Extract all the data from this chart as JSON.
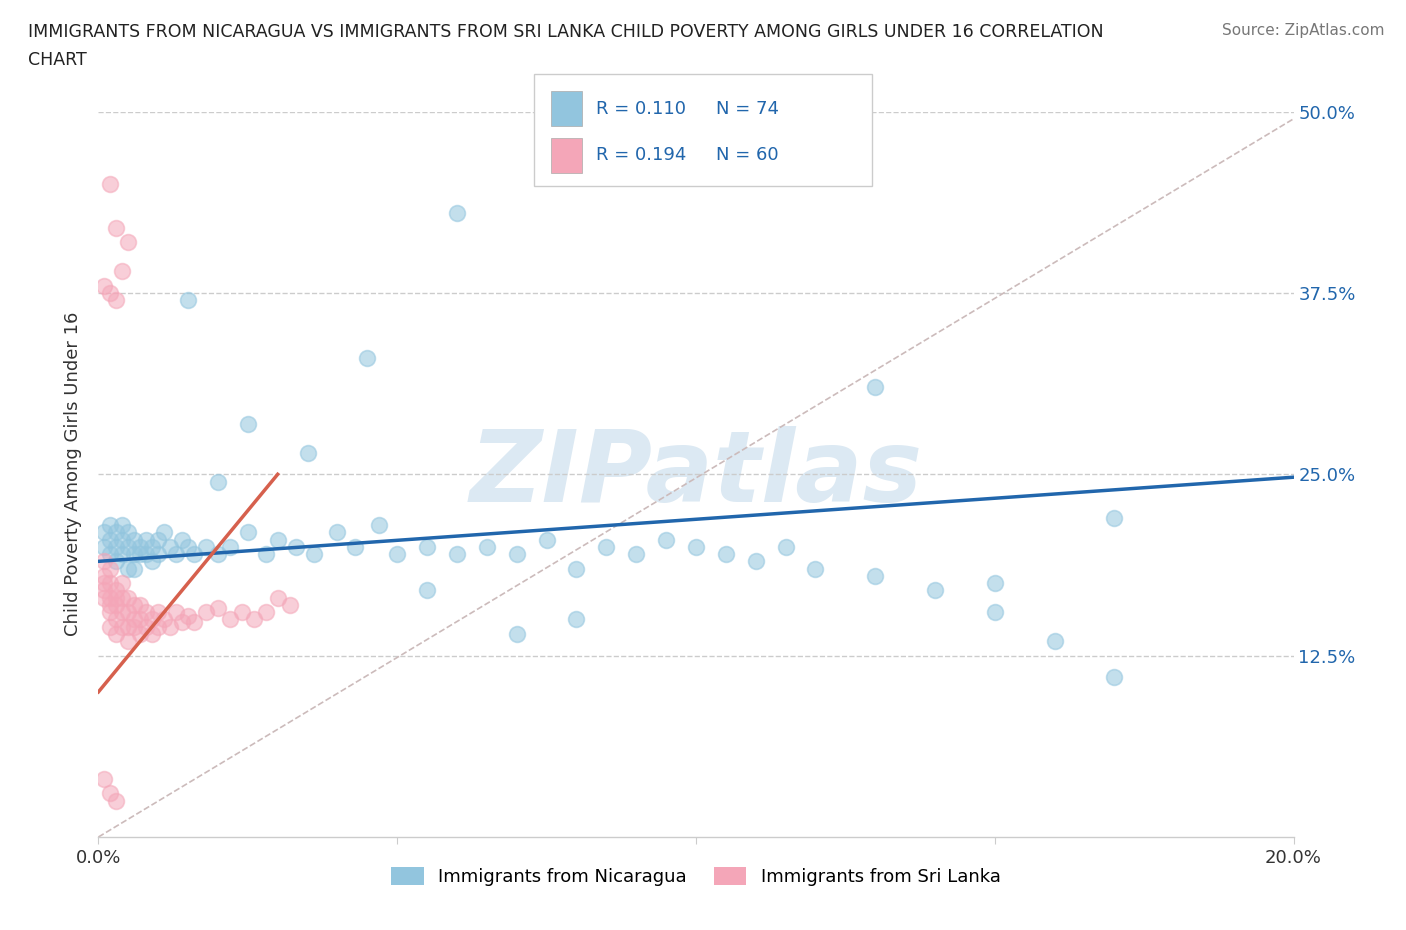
{
  "title_line1": "IMMIGRANTS FROM NICARAGUA VS IMMIGRANTS FROM SRI LANKA CHILD POVERTY AMONG GIRLS UNDER 16 CORRELATION",
  "title_line2": "CHART",
  "source": "Source: ZipAtlas.com",
  "ylabel": "Child Poverty Among Girls Under 16",
  "xlim": [
    0.0,
    0.2
  ],
  "ylim": [
    0.0,
    0.5
  ],
  "yticks": [
    0.0,
    0.125,
    0.25,
    0.375,
    0.5
  ],
  "ytick_labels": [
    "",
    "12.5%",
    "25.0%",
    "37.5%",
    "50.0%"
  ],
  "xticks": [
    0.0,
    0.05,
    0.1,
    0.15,
    0.2
  ],
  "xtick_labels": [
    "0.0%",
    "",
    "",
    "",
    "20.0%"
  ],
  "legend_R1": "R = 0.110",
  "legend_N1": "N = 74",
  "legend_R2": "R = 0.194",
  "legend_N2": "N = 60",
  "label1": "Immigrants from Nicaragua",
  "label2": "Immigrants from Sri Lanka",
  "color1": "#92c5de",
  "color2": "#f4a6b8",
  "trend1_color": "#2166ac",
  "trend2_color": "#d6604d",
  "ref_line_color": "#ccbbbb",
  "watermark": "ZIPatlas",
  "watermark_color": "#dce9f3",
  "background_color": "#ffffff",
  "grid_color": "#cccccc",
  "title_color": "#222222",
  "tick_color": "#2166ac",
  "nicaragua_x": [
    0.001,
    0.001,
    0.002,
    0.002,
    0.002,
    0.003,
    0.003,
    0.003,
    0.004,
    0.004,
    0.004,
    0.005,
    0.005,
    0.005,
    0.006,
    0.006,
    0.006,
    0.007,
    0.007,
    0.008,
    0.008,
    0.009,
    0.009,
    0.01,
    0.01,
    0.011,
    0.012,
    0.013,
    0.014,
    0.015,
    0.016,
    0.018,
    0.02,
    0.022,
    0.025,
    0.028,
    0.03,
    0.033,
    0.036,
    0.04,
    0.043,
    0.047,
    0.05,
    0.055,
    0.06,
    0.065,
    0.07,
    0.075,
    0.08,
    0.085,
    0.09,
    0.095,
    0.1,
    0.105,
    0.11,
    0.115,
    0.12,
    0.13,
    0.14,
    0.15,
    0.16,
    0.17,
    0.025,
    0.035,
    0.045,
    0.055,
    0.07,
    0.06,
    0.08,
    0.02,
    0.015,
    0.17,
    0.15,
    0.13
  ],
  "nicaragua_y": [
    0.2,
    0.21,
    0.195,
    0.205,
    0.215,
    0.19,
    0.2,
    0.21,
    0.195,
    0.205,
    0.215,
    0.185,
    0.2,
    0.21,
    0.195,
    0.205,
    0.185,
    0.2,
    0.195,
    0.205,
    0.195,
    0.2,
    0.19,
    0.205,
    0.195,
    0.21,
    0.2,
    0.195,
    0.205,
    0.2,
    0.195,
    0.2,
    0.195,
    0.2,
    0.21,
    0.195,
    0.205,
    0.2,
    0.195,
    0.21,
    0.2,
    0.215,
    0.195,
    0.2,
    0.195,
    0.2,
    0.195,
    0.205,
    0.185,
    0.2,
    0.195,
    0.205,
    0.2,
    0.195,
    0.19,
    0.2,
    0.185,
    0.18,
    0.17,
    0.155,
    0.135,
    0.11,
    0.285,
    0.265,
    0.33,
    0.17,
    0.14,
    0.43,
    0.15,
    0.245,
    0.37,
    0.22,
    0.175,
    0.31
  ],
  "srilanka_x": [
    0.001,
    0.001,
    0.001,
    0.001,
    0.001,
    0.002,
    0.002,
    0.002,
    0.002,
    0.002,
    0.002,
    0.003,
    0.003,
    0.003,
    0.003,
    0.003,
    0.004,
    0.004,
    0.004,
    0.004,
    0.005,
    0.005,
    0.005,
    0.005,
    0.006,
    0.006,
    0.006,
    0.007,
    0.007,
    0.007,
    0.008,
    0.008,
    0.009,
    0.009,
    0.01,
    0.01,
    0.011,
    0.012,
    0.013,
    0.014,
    0.015,
    0.016,
    0.018,
    0.02,
    0.022,
    0.024,
    0.026,
    0.028,
    0.03,
    0.032,
    0.002,
    0.003,
    0.004,
    0.005,
    0.001,
    0.002,
    0.003,
    0.001,
    0.002,
    0.003
  ],
  "srilanka_y": [
    0.17,
    0.18,
    0.19,
    0.175,
    0.165,
    0.16,
    0.175,
    0.185,
    0.165,
    0.155,
    0.145,
    0.17,
    0.16,
    0.15,
    0.14,
    0.165,
    0.155,
    0.165,
    0.175,
    0.145,
    0.155,
    0.165,
    0.145,
    0.135,
    0.15,
    0.16,
    0.145,
    0.16,
    0.15,
    0.14,
    0.155,
    0.145,
    0.15,
    0.14,
    0.145,
    0.155,
    0.15,
    0.145,
    0.155,
    0.148,
    0.152,
    0.148,
    0.155,
    0.158,
    0.15,
    0.155,
    0.15,
    0.155,
    0.165,
    0.16,
    0.45,
    0.42,
    0.39,
    0.41,
    0.38,
    0.375,
    0.37,
    0.04,
    0.03,
    0.025
  ],
  "trend1_x": [
    0.0,
    0.2
  ],
  "trend1_y": [
    0.19,
    0.248
  ],
  "trend2_x": [
    0.0,
    0.03
  ],
  "trend2_y": [
    0.1,
    0.25
  ],
  "ref_line_x": [
    0.0,
    0.2
  ],
  "ref_line_y": [
    0.0,
    0.495
  ]
}
